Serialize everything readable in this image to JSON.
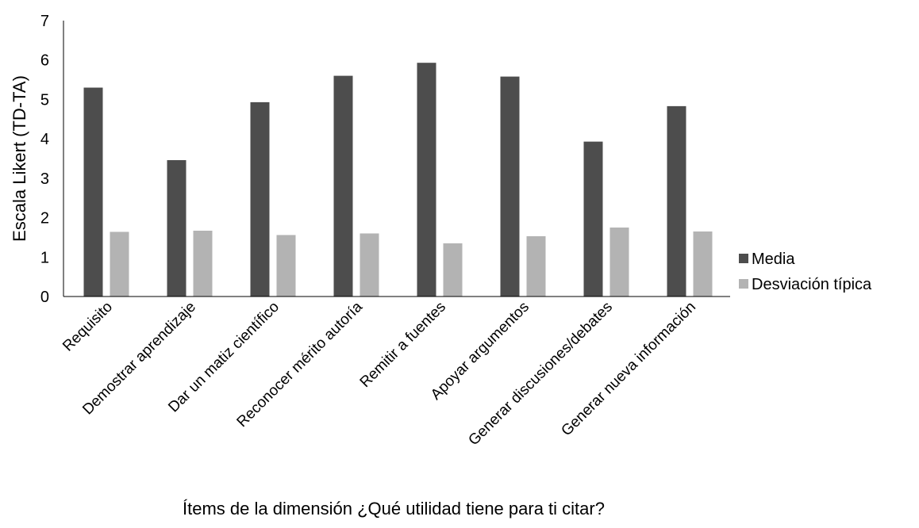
{
  "chart_data": {
    "type": "bar",
    "title": "",
    "xlabel": "Ítems de la dimensión ¿Qué utilidad tiene para ti citar?",
    "ylabel": "Escala Likert (TD-TA)",
    "ylim": [
      0,
      7
    ],
    "yticks": [
      "0",
      "1",
      "2",
      "3",
      "4",
      "5",
      "6",
      "7"
    ],
    "grid": false,
    "legend_position": "right",
    "categories": [
      "Requisito",
      "Demostrar aprendizaje",
      "Dar un matiz científico",
      "Reconocer mérito autoría",
      "Remitir a fuentes",
      "Apoyar argumentos",
      "Generar discusiones/debates",
      "Generar nueva información"
    ],
    "series": [
      {
        "name": "Media",
        "color": "#4d4d4d",
        "values": [
          5.3,
          3.46,
          4.93,
          5.6,
          5.93,
          5.58,
          3.93,
          4.83
        ]
      },
      {
        "name": "Desviación típica",
        "color": "#b3b3b3",
        "values": [
          1.64,
          1.67,
          1.56,
          1.6,
          1.35,
          1.53,
          1.75,
          1.65
        ]
      }
    ]
  }
}
